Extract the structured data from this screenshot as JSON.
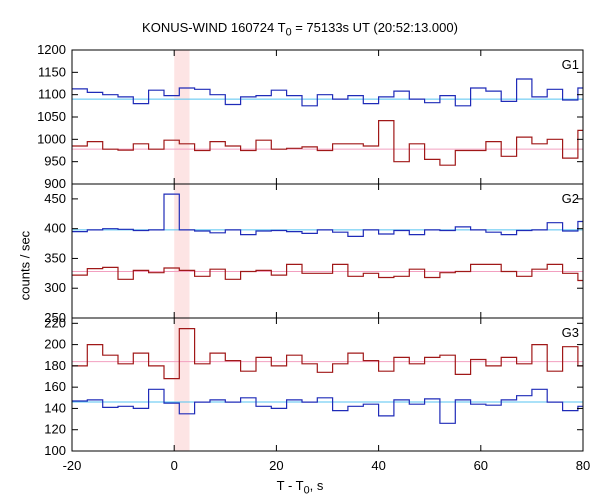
{
  "chart_data": {
    "type": "line",
    "title_prefix": "KONUS-WIND 160724 T",
    "title_sub": "0",
    "title_suffix": " = 75133s UT (20:52:13.000)",
    "xlabel_main": "T - T",
    "xlabel_sub": "0",
    "xlabel_unit": ", s",
    "ylabel": "counts / sec",
    "xlim": [
      -20,
      80
    ],
    "xticks": [
      -20,
      0,
      20,
      40,
      60,
      80
    ],
    "highlight_interval": [
      0,
      3
    ],
    "highlight_color": "#fde4e4",
    "bin_width": 3,
    "bin_start": -20,
    "panels": [
      {
        "label": "G1",
        "ylim": [
          900,
          1200
        ],
        "yticks": [
          900,
          950,
          1000,
          1050,
          1100,
          1150,
          1200
        ],
        "series": [
          {
            "color": "#1f2bb8",
            "background": 1090,
            "bg_color": "#54c3f0",
            "values": [
              1113,
              1105,
              1100,
              1095,
              1080,
              1110,
              1098,
              1115,
              1112,
              1100,
              1078,
              1095,
              1098,
              1110,
              1098,
              1075,
              1100,
              1090,
              1098,
              1080,
              1095,
              1108,
              1090,
              1082,
              1098,
              1075,
              1115,
              1108,
              1085,
              1135,
              1095,
              1112,
              1088,
              1115
            ]
          },
          {
            "color": "#a01818",
            "background": 978,
            "bg_color": "#f2a0c0",
            "values": [
              985,
              995,
              978,
              976,
              990,
              978,
              998,
              990,
              975,
              995,
              985,
              975,
              998,
              978,
              980,
              983,
              975,
              990,
              990,
              985,
              1042,
              950,
              990,
              955,
              942,
              975,
              975,
              995,
              962,
              1005,
              990,
              1000,
              958,
              1020
            ]
          }
        ]
      },
      {
        "label": "G2",
        "ylim": [
          250,
          475
        ],
        "yticks": [
          250,
          300,
          350,
          400,
          450
        ],
        "series": [
          {
            "color": "#1f2bb8",
            "background": 398,
            "bg_color": "#54c3f0",
            "values": [
              395,
              398,
              400,
              399,
              397,
              398,
              458,
              398,
              396,
              393,
              398,
              390,
              396,
              397,
              395,
              392,
              398,
              394,
              387,
              398,
              391,
              397,
              390,
              398,
              397,
              403,
              398,
              394,
              390,
              397,
              398,
              410,
              396,
              412
            ]
          },
          {
            "color": "#a01818",
            "background": 328,
            "bg_color": "#f2a0c0",
            "values": [
              322,
              333,
              335,
              315,
              330,
              326,
              334,
              330,
              320,
              332,
              315,
              328,
              330,
              322,
              340,
              325,
              325,
              340,
              320,
              325,
              318,
              320,
              332,
              318,
              326,
              328,
              340,
              340,
              328,
              320,
              332,
              340,
              325,
              313
            ]
          }
        ]
      },
      {
        "label": "G3",
        "ylim": [
          100,
          225
        ],
        "yticks": [
          100,
          120,
          140,
          160,
          180,
          200,
          220
        ],
        "series": [
          {
            "color": "#a01818",
            "background": 184,
            "bg_color": "#f2a0c0",
            "values": [
              180,
              200,
              190,
              182,
              192,
              180,
              168,
              215,
              182,
              192,
              185,
              175,
              188,
              180,
              190,
              182,
              174,
              182,
              192,
              185,
              175,
              188,
              182,
              188,
              190,
              172,
              186,
              180,
              188,
              182,
              200,
              175,
              198,
              180
            ]
          },
          {
            "color": "#1f2bb8",
            "background": 146,
            "bg_color": "#54c3f0",
            "values": [
              147,
              148,
              141,
              142,
              140,
              158,
              145,
              135,
              146,
              148,
              146,
              150,
              142,
              140,
              148,
              146,
              150,
              138,
              142,
              144,
              133,
              148,
              144,
              149,
              126,
              148,
              144,
              143,
              148,
              152,
              158,
              146,
              138,
              142
            ]
          }
        ]
      }
    ]
  }
}
